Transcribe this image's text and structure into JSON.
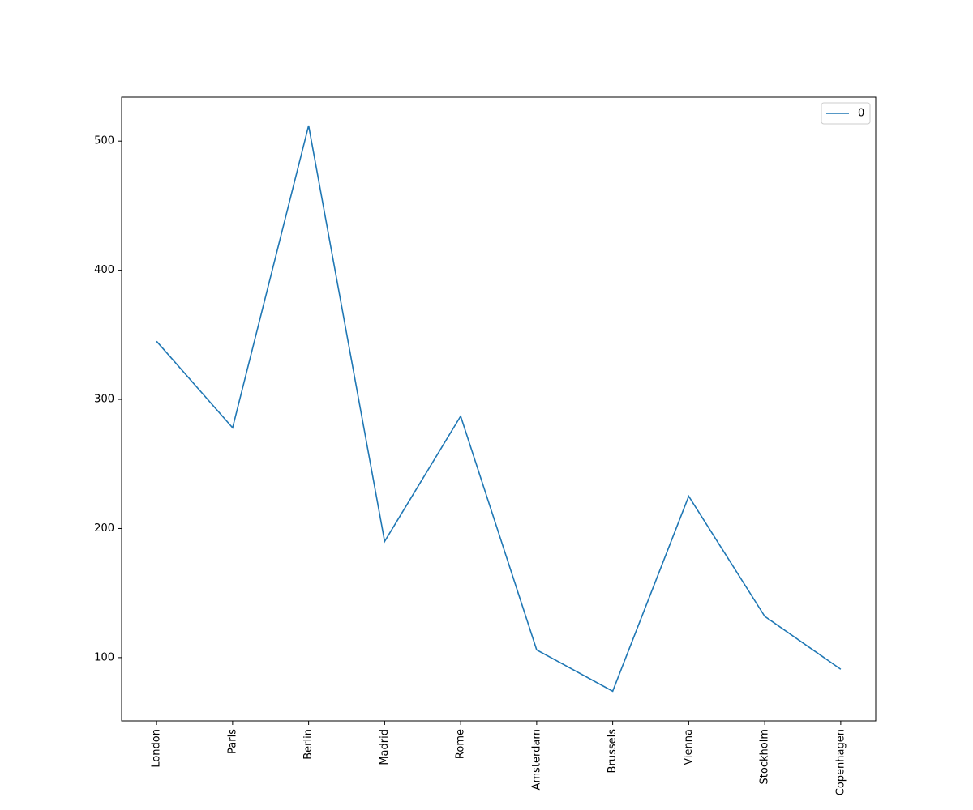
{
  "chart_data": {
    "type": "line",
    "categories": [
      "London",
      "Paris",
      "Berlin",
      "Madrid",
      "Rome",
      "Amsterdam",
      "Brussels",
      "Vienna",
      "Stockholm",
      "Copenhagen"
    ],
    "series": [
      {
        "name": "0",
        "color": "#1f77b4",
        "values": [
          345,
          278,
          512,
          190,
          287,
          106,
          74,
          225,
          132,
          91
        ]
      }
    ],
    "ylim": [
      51,
      534
    ],
    "yticks": [
      100,
      200,
      300,
      400,
      500
    ],
    "legend": "upper-right"
  }
}
